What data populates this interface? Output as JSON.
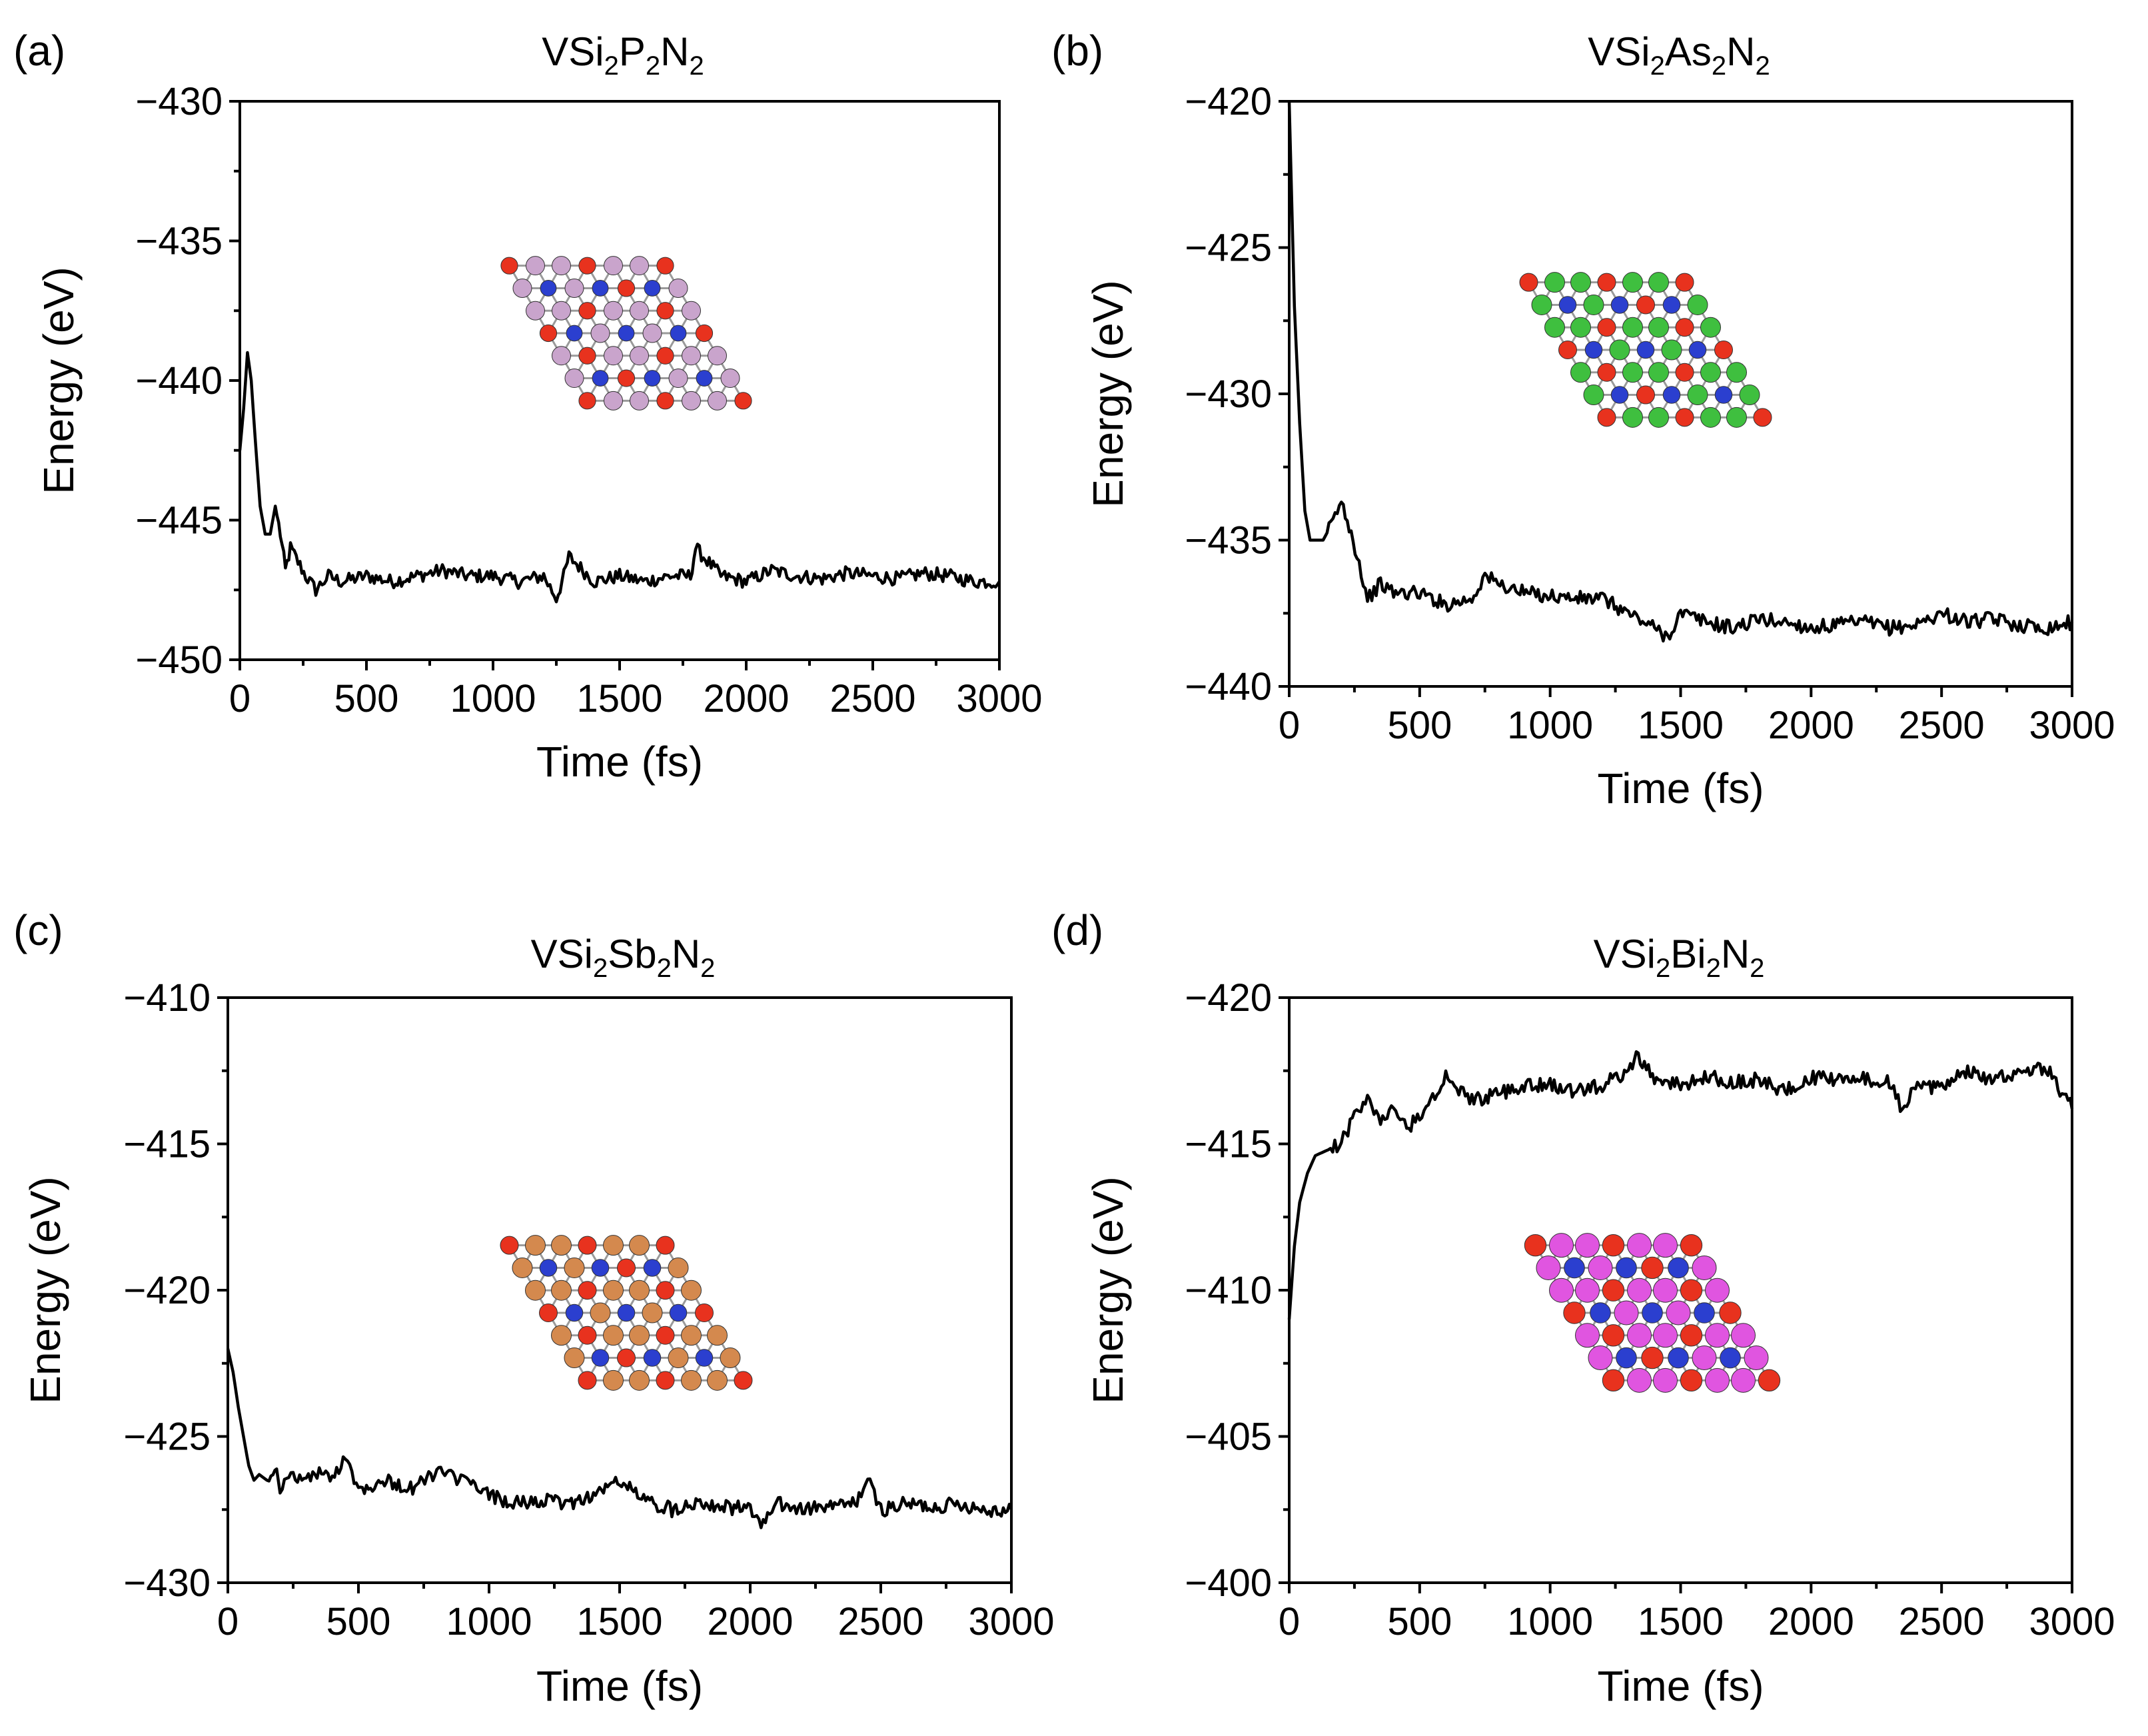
{
  "chart_data": [
    {
      "type": "line",
      "panel_label": "(a)",
      "title": {
        "base": "VSi",
        "s1": "2",
        "mid": "P",
        "s2": "2",
        "end": "N",
        "s3": "2"
      },
      "xlabel": "Time (fs)",
      "ylabel": "Energy (eV)",
      "xlim": [
        0,
        3000
      ],
      "ylim": [
        -450,
        -430
      ],
      "xticks": [
        0,
        500,
        1000,
        1500,
        2000,
        2500,
        3000
      ],
      "xtick_labels": [
        "0",
        "500",
        "1000",
        "1500",
        "2000",
        "2500",
        "3000"
      ],
      "yticks": [
        -450,
        -445,
        -440,
        -435,
        -430
      ],
      "ytick_labels": [
        "−450",
        "−445",
        "−440",
        "−435",
        "−430"
      ],
      "inset_colors": {
        "metal": "#2b3fcf",
        "silicon": "#e8321e",
        "pnictogen": "#c9a4cc"
      },
      "series": [
        {
          "x": [
            0,
            15,
            30,
            45,
            60,
            80,
            100,
            120,
            140,
            160,
            180,
            200,
            230,
            260,
            300,
            350,
            400,
            500,
            600,
            700,
            800,
            900,
            1000,
            1100,
            1200,
            1250,
            1280,
            1300,
            1400,
            1500,
            1600,
            1700,
            1780,
            1800,
            1900,
            2000,
            2100,
            2200,
            2300,
            2400,
            2500,
            2600,
            2700,
            2800,
            2900,
            3000
          ],
          "y": [
            -442.5,
            -441,
            -439,
            -440,
            -442,
            -444.5,
            -445.5,
            -445.5,
            -444.5,
            -445.5,
            -446.8,
            -446,
            -446.5,
            -447,
            -447.5,
            -447,
            -447.2,
            -447,
            -447.2,
            -447,
            -446.8,
            -447,
            -447,
            -447.2,
            -447,
            -447.8,
            -447,
            -446.3,
            -447.2,
            -447,
            -447.2,
            -447,
            -447,
            -446,
            -447,
            -447.2,
            -446.8,
            -447,
            -447.1,
            -446.9,
            -447,
            -447.1,
            -446.9,
            -447,
            -447.2,
            -447.2
          ]
        }
      ]
    },
    {
      "type": "line",
      "panel_label": "(b)",
      "title": {
        "base": "VSi",
        "s1": "2",
        "mid": "As",
        "s2": "2",
        "end": "N",
        "s3": "2"
      },
      "xlabel": "Time (fs)",
      "ylabel": "Energy (eV)",
      "xlim": [
        0,
        3000
      ],
      "ylim": [
        -440,
        -420
      ],
      "xticks": [
        0,
        500,
        1000,
        1500,
        2000,
        2500,
        3000
      ],
      "xtick_labels": [
        "0",
        "500",
        "1000",
        "1500",
        "2000",
        "2500",
        "3000"
      ],
      "yticks": [
        -440,
        -435,
        -430,
        -425,
        -420
      ],
      "ytick_labels": [
        "−440",
        "−435",
        "−430",
        "−425",
        "−420"
      ],
      "inset_colors": {
        "metal": "#2b3fcf",
        "silicon": "#e8321e",
        "pnictogen": "#3fbf3f"
      },
      "series": [
        {
          "x": [
            0,
            20,
            40,
            60,
            80,
            100,
            130,
            160,
            200,
            230,
            260,
            300,
            350,
            400,
            500,
            600,
            700,
            750,
            800,
            900,
            1000,
            1100,
            1200,
            1300,
            1400,
            1450,
            1500,
            1600,
            1700,
            1800,
            1900,
            2000,
            2100,
            2200,
            2300,
            2400,
            2500,
            2600,
            2700,
            2800,
            2900,
            3000
          ],
          "y": [
            -420,
            -427,
            -431,
            -434,
            -435,
            -435,
            -435,
            -434.5,
            -433.7,
            -434.5,
            -435.5,
            -437,
            -436.5,
            -436.8,
            -436.8,
            -437.2,
            -437,
            -436.2,
            -436.5,
            -436.8,
            -436.9,
            -437,
            -437,
            -437.5,
            -438,
            -438.3,
            -437.5,
            -437.8,
            -438,
            -437.7,
            -437.8,
            -438,
            -437.9,
            -437.8,
            -438,
            -437.9,
            -437.5,
            -437.8,
            -437.7,
            -437.9,
            -438,
            -437.8
          ]
        }
      ]
    },
    {
      "type": "line",
      "panel_label": "(c)",
      "title": {
        "base": "VSi",
        "s1": "2",
        "mid": "Sb",
        "s2": "2",
        "end": "N",
        "s3": "2"
      },
      "xlabel": "Time (fs)",
      "ylabel": "Energy (eV)",
      "xlim": [
        0,
        3000
      ],
      "ylim": [
        -430,
        -410
      ],
      "xticks": [
        0,
        500,
        1000,
        1500,
        2000,
        2500,
        3000
      ],
      "xtick_labels": [
        "0",
        "500",
        "1000",
        "1500",
        "2000",
        "2500",
        "3000"
      ],
      "yticks": [
        -430,
        -425,
        -420,
        -415,
        -410
      ],
      "ytick_labels": [
        "−430",
        "−425",
        "−420",
        "−415",
        "−410"
      ],
      "inset_colors": {
        "metal": "#2b3fcf",
        "silicon": "#e8321e",
        "pnictogen": "#d4894e"
      },
      "series": [
        {
          "x": [
            0,
            20,
            40,
            60,
            80,
            100,
            120,
            150,
            180,
            200,
            250,
            300,
            350,
            400,
            450,
            500,
            600,
            700,
            800,
            900,
            1000,
            1100,
            1200,
            1300,
            1400,
            1500,
            1600,
            1700,
            1800,
            1900,
            2000,
            2050,
            2100,
            2200,
            2300,
            2400,
            2450,
            2500,
            2600,
            2700,
            2800,
            2900,
            3000
          ],
          "y": [
            -422,
            -422.8,
            -424,
            -425,
            -426,
            -426.5,
            -426.3,
            -426.5,
            -426,
            -426.8,
            -426.3,
            -426.5,
            -426.2,
            -426.5,
            -425.6,
            -426.8,
            -426.5,
            -426.8,
            -426.2,
            -426.5,
            -427,
            -427.3,
            -427.2,
            -427.3,
            -427,
            -426.5,
            -427.2,
            -427.5,
            -427.2,
            -427.4,
            -427.5,
            -428,
            -427.3,
            -427.5,
            -427.4,
            -427.3,
            -426.5,
            -427.5,
            -427.3,
            -427.4,
            -427.3,
            -427.5,
            -427.5
          ]
        }
      ]
    },
    {
      "type": "line",
      "panel_label": "(d)",
      "title": {
        "base": "VSi",
        "s1": "2",
        "mid": "Bi",
        "s2": "2",
        "end": "N",
        "s3": "2"
      },
      "xlabel": "Time (fs)",
      "ylabel": "Energy (eV)",
      "xlim": [
        0,
        3000
      ],
      "ylim": [
        -400,
        -420
      ],
      "yaxis_inverted": true,
      "xticks": [
        0,
        500,
        1000,
        1500,
        2000,
        2500,
        3000
      ],
      "xtick_labels": [
        "0",
        "500",
        "1000",
        "1500",
        "2000",
        "2500",
        "3000"
      ],
      "yticks": [
        -420,
        -415,
        -410,
        -405,
        -400
      ],
      "ytick_labels": [
        "−420",
        "−415",
        "−410",
        "−405",
        "−400"
      ],
      "inset_colors": {
        "metal": "#2b3fcf",
        "silicon": "#e8321e",
        "pnictogen": "#e055e0"
      },
      "series": [
        {
          "x": [
            0,
            20,
            40,
            70,
            100,
            150,
            200,
            250,
            300,
            350,
            400,
            450,
            500,
            550,
            600,
            650,
            700,
            800,
            900,
            1000,
            1100,
            1200,
            1300,
            1330,
            1400,
            1500,
            1600,
            1700,
            1800,
            1900,
            2000,
            2100,
            2200,
            2300,
            2350,
            2400,
            2500,
            2600,
            2700,
            2800,
            2900,
            3000
          ],
          "y": [
            -409,
            -411.5,
            -413,
            -414,
            -414.6,
            -414.8,
            -415,
            -416,
            -416.5,
            -415.8,
            -416.2,
            -415.5,
            -416,
            -416.5,
            -417.3,
            -416.8,
            -416.5,
            -416.7,
            -417,
            -417,
            -416.8,
            -417,
            -417.5,
            -418,
            -417.2,
            -417,
            -417.3,
            -417.1,
            -417.2,
            -416.8,
            -417.3,
            -417.2,
            -417.2,
            -417.1,
            -416.2,
            -416.9,
            -417,
            -417.5,
            -417.2,
            -417.5,
            -417.6,
            -416.2
          ]
        }
      ]
    }
  ]
}
